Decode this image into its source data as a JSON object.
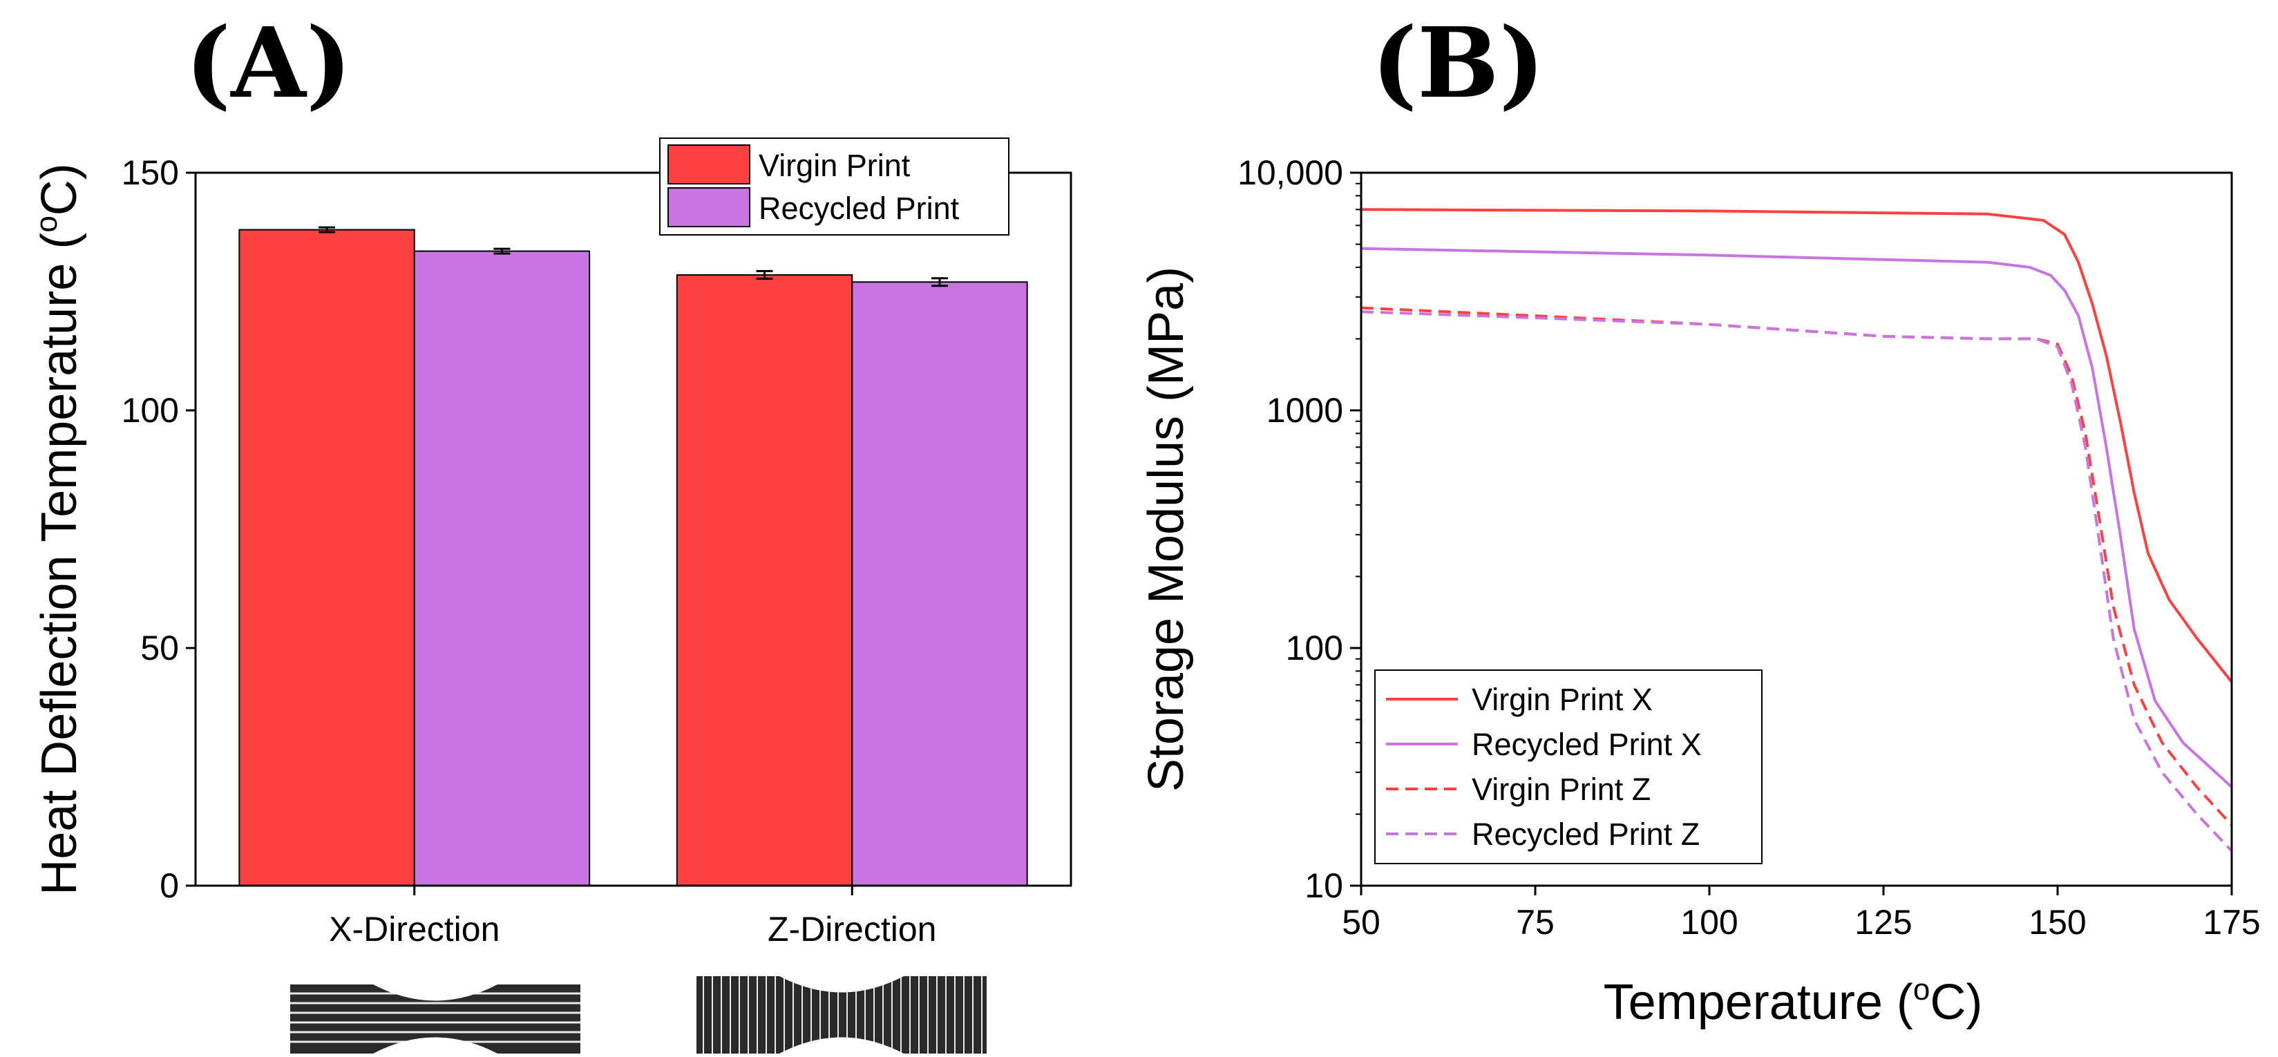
{
  "chart_data": [
    {
      "panel_label": "(A)",
      "type": "bar",
      "ylabel_main": "Heat Deflection Temperature (",
      "ylabel_sup": "o",
      "ylabel_end": "C)",
      "ylim": [
        0,
        150
      ],
      "yticks": [
        0,
        50,
        100,
        150
      ],
      "categories": [
        "X-Direction",
        "Z-Direction"
      ],
      "series": [
        {
          "name": "Virgin Print",
          "color": "#ff4040",
          "values": [
            138,
            128.5
          ],
          "errors": [
            0.5,
            0.8
          ]
        },
        {
          "name": "Recycled Print",
          "color": "#c874e1",
          "values": [
            133.5,
            127
          ],
          "errors": [
            0.5,
            0.8
          ]
        }
      ],
      "legend_position": "top-right"
    },
    {
      "panel_label": "(B)",
      "type": "line",
      "ylabel": "Storage Modulus (MPa)",
      "xlabel_main": "Temperature (",
      "xlabel_sup": "o",
      "xlabel_end": "C)",
      "xlim": [
        50,
        175
      ],
      "xticks": [
        50,
        75,
        100,
        125,
        150,
        175
      ],
      "yscale": "log",
      "ylim": [
        10,
        10000
      ],
      "yticks": [
        10,
        100,
        1000,
        10000
      ],
      "ytick_labels": [
        "10",
        "100",
        "1000",
        "10,000"
      ],
      "series": [
        {
          "name": "Virgin Print X",
          "color": "#ff4040",
          "dash": "solid",
          "x": [
            50,
            100,
            140,
            148,
            151,
            153,
            155,
            157,
            159,
            161,
            163,
            166,
            170,
            175
          ],
          "y": [
            7000,
            6900,
            6700,
            6300,
            5500,
            4200,
            2800,
            1700,
            900,
            450,
            250,
            160,
            110,
            72
          ]
        },
        {
          "name": "Recycled Print X",
          "color": "#c874e1",
          "dash": "solid",
          "x": [
            50,
            100,
            140,
            146,
            149,
            151,
            153,
            155,
            157,
            159,
            161,
            164,
            168,
            175
          ],
          "y": [
            4800,
            4500,
            4200,
            4000,
            3700,
            3200,
            2500,
            1500,
            700,
            300,
            120,
            60,
            40,
            26
          ]
        },
        {
          "name": "Virgin Print Z",
          "color": "#ff4040",
          "dash": "dashed",
          "x": [
            50,
            75,
            100,
            125,
            140,
            147,
            150,
            152,
            154,
            156,
            158,
            161,
            165,
            170,
            175
          ],
          "y": [
            2700,
            2500,
            2300,
            2050,
            2000,
            2000,
            1900,
            1400,
            800,
            350,
            150,
            70,
            40,
            26,
            18
          ]
        },
        {
          "name": "Recycled Print Z",
          "color": "#c874e1",
          "dash": "dashed",
          "x": [
            50,
            75,
            100,
            125,
            140,
            147,
            150,
            152,
            154,
            156,
            158,
            161,
            165,
            170,
            175
          ],
          "y": [
            2600,
            2450,
            2300,
            2050,
            2000,
            2000,
            1850,
            1300,
            700,
            280,
            110,
            50,
            30,
            20,
            14
          ]
        }
      ],
      "legend_position": "bottom-left"
    }
  ]
}
